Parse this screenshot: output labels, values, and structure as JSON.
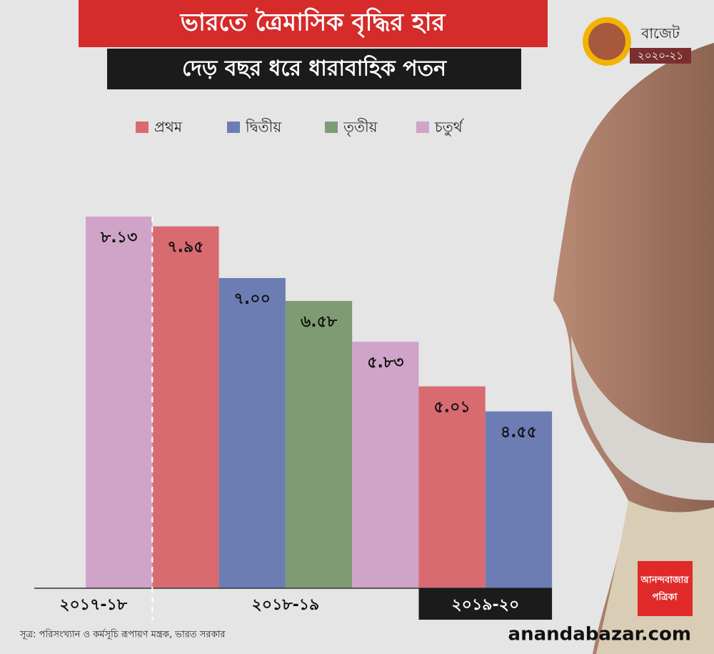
{
  "chart_data": {
    "type": "bar",
    "title": "ভারতে ত্রৈমাসিক বৃদ্ধির হার",
    "subtitle": "দেড় বছর ধরে ধারাবাহিক পতন",
    "categories": [
      null,
      null,
      null,
      null,
      null,
      null,
      null
    ],
    "groups": [
      {
        "label": "২০১৭-১৮",
        "count": 1
      },
      {
        "label": "২০১৮-১৯",
        "count": 4
      },
      {
        "label": "২০১৯-২০",
        "count": 2
      }
    ],
    "series": [
      {
        "name": "প্রথম",
        "color": "#d96b70",
        "values": [
          null,
          7.95,
          null,
          null,
          null,
          5.01,
          null
        ],
        "value_labels": [
          null,
          "৭.৯৫",
          null,
          null,
          null,
          "৫.০১",
          null
        ]
      },
      {
        "name": "দ্বিতীয়",
        "color": "#6c7db4",
        "values": [
          null,
          null,
          7.0,
          null,
          null,
          null,
          4.55
        ],
        "value_labels": [
          null,
          null,
          "৭.০০",
          null,
          null,
          null,
          "৪.৫৫"
        ]
      },
      {
        "name": "তৃতীয়",
        "color": "#7f9b74",
        "values": [
          null,
          null,
          null,
          6.58,
          null,
          null,
          null
        ],
        "value_labels": [
          null,
          null,
          null,
          "৬.৫৮",
          null,
          null,
          null
        ]
      },
      {
        "name": "চতুর্থ",
        "color": "#d0a4c8",
        "values": [
          8.13,
          null,
          null,
          null,
          5.83,
          null,
          null
        ],
        "value_labels": [
          "৮.১৩",
          null,
          null,
          null,
          "৫.৮৩",
          null,
          null
        ]
      }
    ],
    "ylim": [
      1.3,
      8.13
    ],
    "source": "সূত্র: পরিসংখ্যান ও কর্মসূচি রূপায়ণ মন্ত্রক, ভারত সরকার",
    "badge": {
      "title": "বাজেট",
      "year": "২০২০-২১"
    },
    "logo": {
      "line1": "আনন্দবাজার",
      "line2": "পত্রিকা"
    },
    "website": "anandabazar.com"
  }
}
